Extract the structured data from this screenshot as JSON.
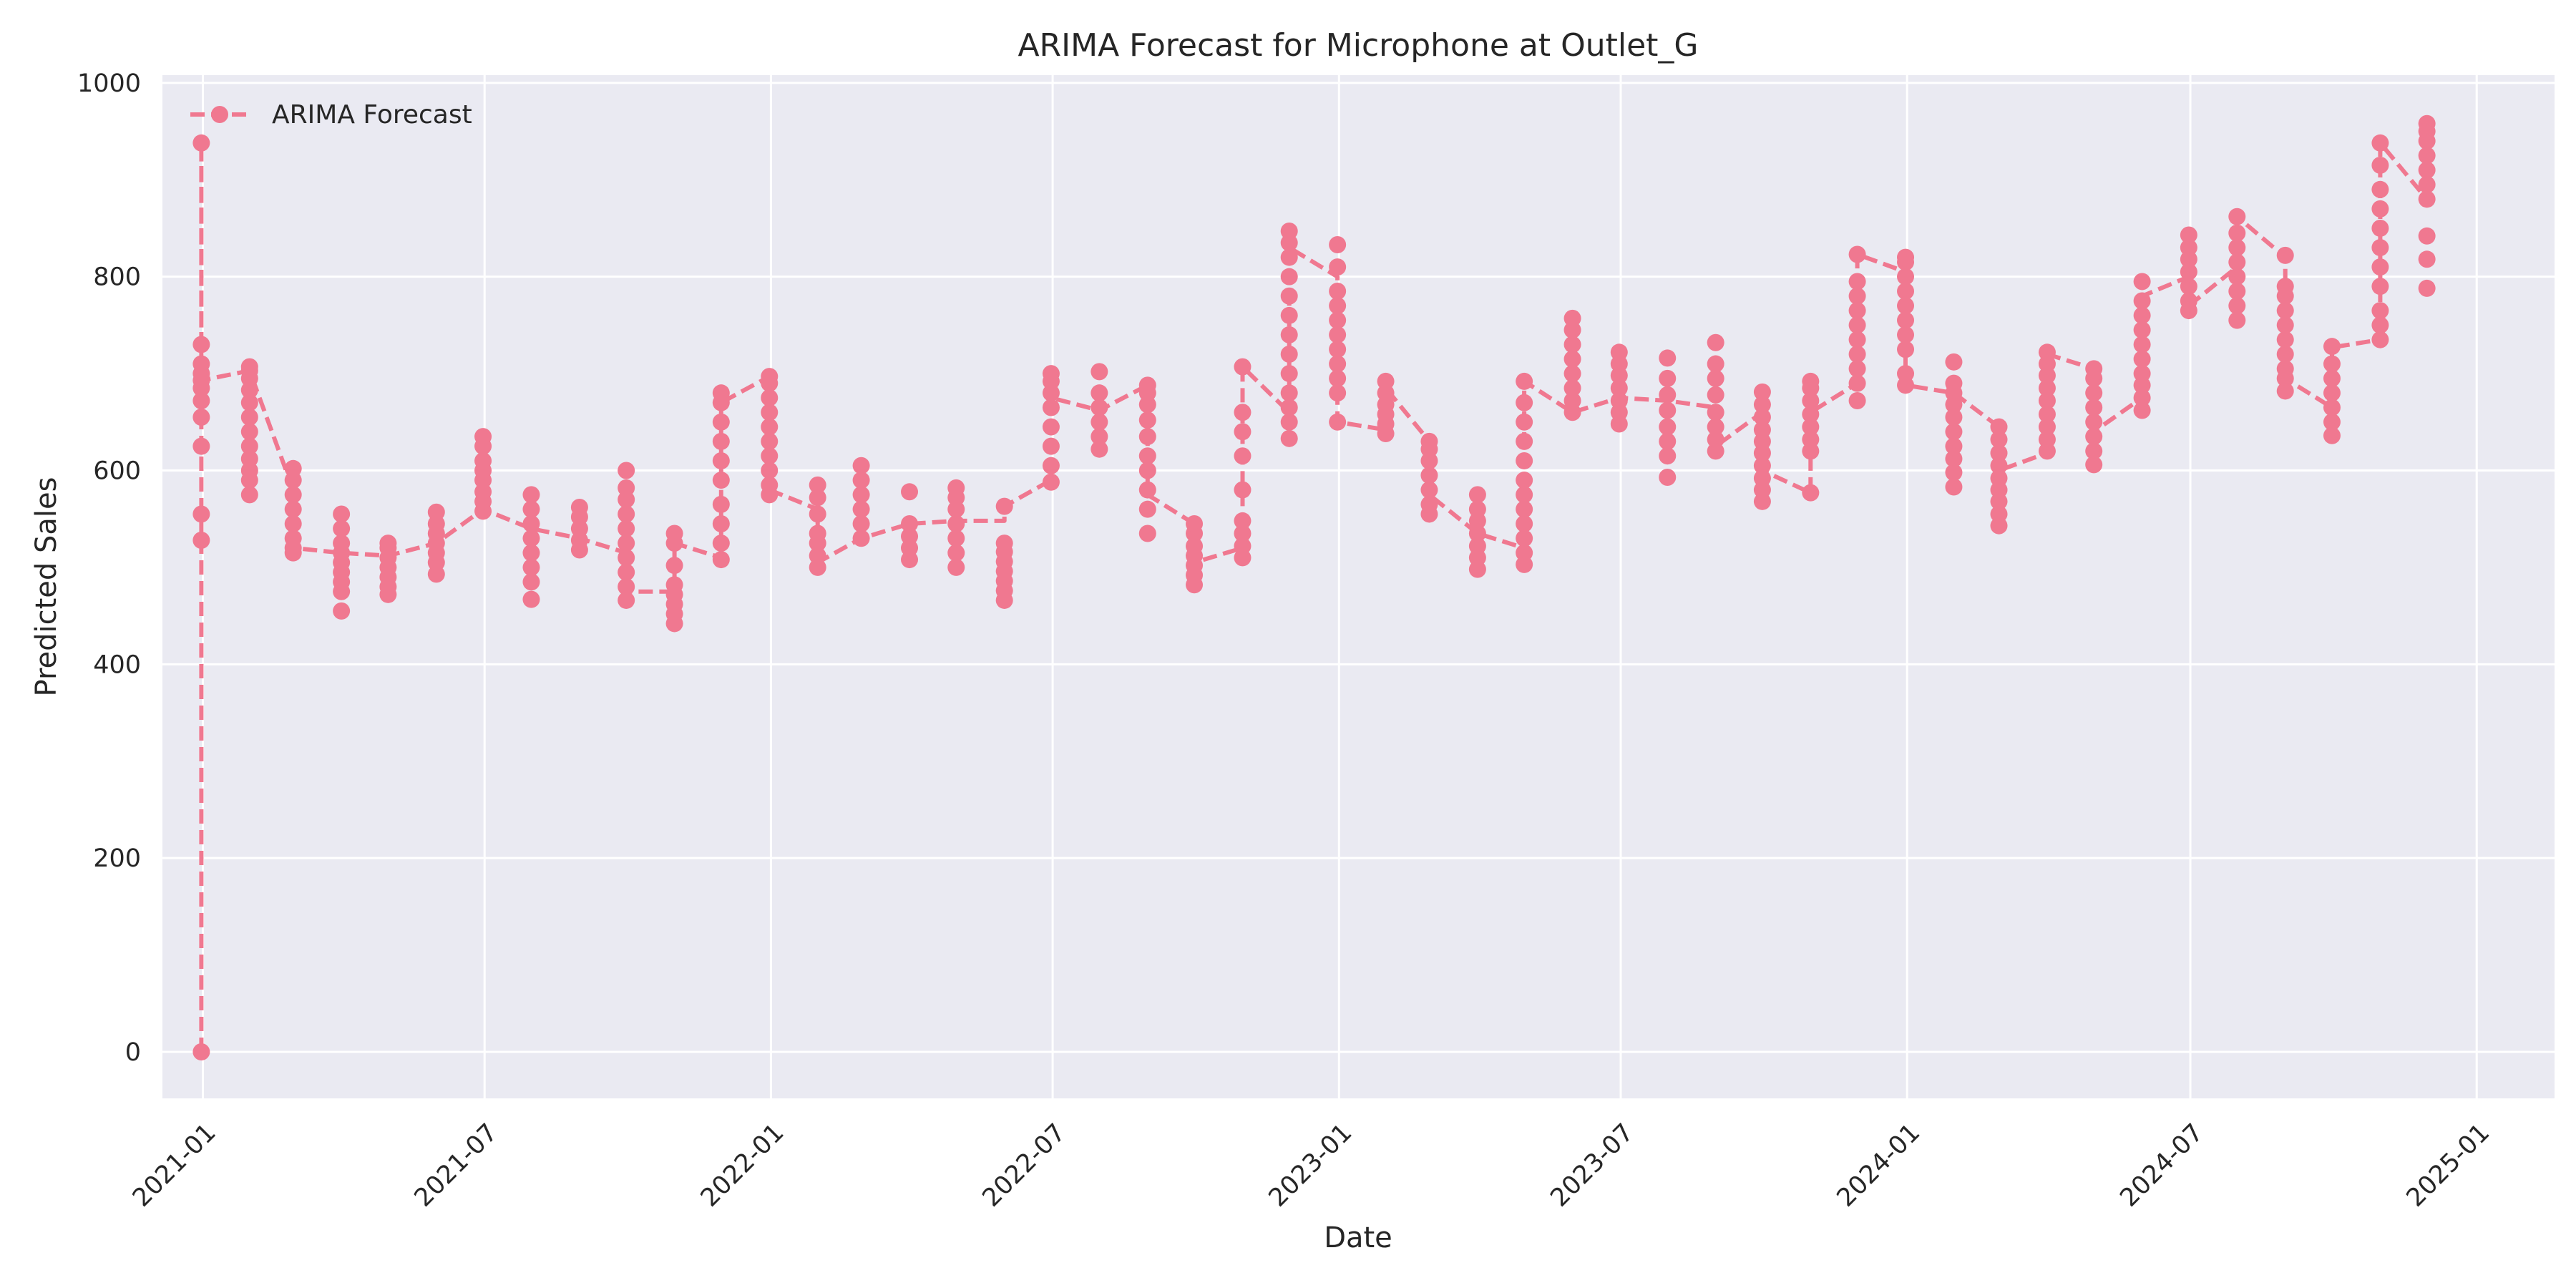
{
  "chart_data": {
    "type": "line",
    "title": "ARIMA Forecast for Microphone at Outlet_G",
    "xlabel": "Date",
    "ylabel": "Predicted Sales",
    "xlim": [
      "2020-12-06",
      "2025-02-20"
    ],
    "ylim": [
      -48,
      1008
    ],
    "x_ticks": [
      "2021-01",
      "2021-07",
      "2022-01",
      "2022-07",
      "2023-01",
      "2023-07",
      "2024-01",
      "2024-07",
      "2025-01"
    ],
    "y_ticks": [
      0,
      200,
      400,
      600,
      800,
      1000
    ],
    "grid": true,
    "legend_position": "top-left",
    "line_style": "dashed",
    "marker": "circle",
    "series": [
      {
        "name": "ARIMA Forecast",
        "color": "#F07890",
        "points": [
          {
            "date": "2020-12-31",
            "values": [
              0,
              528,
              555,
              625,
              655,
              672,
              685,
              693,
              700,
              710,
              730,
              938
            ]
          },
          {
            "date": "2021-01-31",
            "values": [
              575,
              590,
              600,
              612,
              625,
              640,
              655,
              670,
              683,
              695,
              703,
              707
            ]
          },
          {
            "date": "2021-02-28",
            "values": [
              515,
              520,
              530,
              545,
              560,
              575,
              590,
              602
            ]
          },
          {
            "date": "2021-03-31",
            "values": [
              455,
              475,
              485,
              495,
              505,
              515,
              525,
              540,
              555
            ]
          },
          {
            "date": "2021-04-30",
            "values": [
              472,
              480,
              490,
              500,
              510,
              520,
              525
            ]
          },
          {
            "date": "2021-05-31",
            "values": [
              493,
              505,
              515,
              525,
              535,
              545,
              557
            ]
          },
          {
            "date": "2021-06-30",
            "values": [
              558,
              568,
              578,
              590,
              600,
              610,
              625,
              635
            ]
          },
          {
            "date": "2021-07-31",
            "values": [
              467,
              485,
              500,
              515,
              530,
              545,
              560,
              575
            ]
          },
          {
            "date": "2021-08-31",
            "values": [
              518,
              528,
              540,
              552,
              562
            ]
          },
          {
            "date": "2021-09-30",
            "values": [
              466,
              480,
              495,
              510,
              525,
              540,
              555,
              570,
              582,
              600
            ]
          },
          {
            "date": "2021-10-31",
            "values": [
              442,
              452,
              462,
              472,
              482,
              502,
              525,
              535
            ]
          },
          {
            "date": "2021-11-30",
            "values": [
              508,
              525,
              545,
              565,
              590,
              610,
              630,
              650,
              670,
              680
            ]
          },
          {
            "date": "2021-12-31",
            "values": [
              575,
              585,
              600,
              615,
              630,
              645,
              660,
              675,
              690,
              697
            ]
          },
          {
            "date": "2022-01-31",
            "values": [
              500,
              512,
              525,
              535,
              555,
              572,
              585
            ]
          },
          {
            "date": "2022-02-28",
            "values": [
              530,
              545,
              560,
              575,
              590,
              605
            ]
          },
          {
            "date": "2022-03-31",
            "values": [
              508,
              520,
              532,
              545,
              578
            ]
          },
          {
            "date": "2022-04-30",
            "values": [
              500,
              515,
              530,
              545,
              560,
              572,
              582
            ]
          },
          {
            "date": "2022-05-31",
            "values": [
              466,
              476,
              486,
              496,
              506,
              516,
              525,
              563
            ]
          },
          {
            "date": "2022-06-30",
            "values": [
              588,
              605,
              625,
              645,
              665,
              680,
              692,
              700
            ]
          },
          {
            "date": "2022-07-31",
            "values": [
              622,
              635,
              650,
              665,
              680,
              702
            ]
          },
          {
            "date": "2022-08-31",
            "values": [
              535,
              560,
              580,
              600,
              615,
              635,
              652,
              668,
              680,
              688
            ]
          },
          {
            "date": "2022-09-30",
            "values": [
              482,
              492,
              502,
              512,
              522,
              535,
              545
            ]
          },
          {
            "date": "2022-10-31",
            "values": [
              510,
              522,
              535,
              548,
              580,
              615,
              640,
              660,
              707
            ]
          },
          {
            "date": "2022-11-30",
            "values": [
              633,
              650,
              665,
              680,
              700,
              720,
              740,
              760,
              780,
              800,
              820,
              835,
              847
            ]
          },
          {
            "date": "2022-12-31",
            "values": [
              650,
              680,
              695,
              710,
              725,
              740,
              755,
              770,
              785,
              810,
              833
            ]
          },
          {
            "date": "2023-01-31",
            "values": [
              638,
              648,
              658,
              668,
              680,
              692
            ]
          },
          {
            "date": "2023-02-28",
            "values": [
              555,
              565,
              580,
              595,
              610,
              622,
              630
            ]
          },
          {
            "date": "2023-03-31",
            "values": [
              498,
              510,
              522,
              535,
              548,
              560,
              575
            ]
          },
          {
            "date": "2023-04-30",
            "values": [
              503,
              515,
              530,
              545,
              560,
              575,
              590,
              610,
              630,
              650,
              670,
              692
            ]
          },
          {
            "date": "2023-05-31",
            "values": [
              660,
              672,
              685,
              700,
              715,
              730,
              745,
              757
            ]
          },
          {
            "date": "2023-06-30",
            "values": [
              648,
              660,
              672,
              685,
              698,
              710,
              722
            ]
          },
          {
            "date": "2023-07-31",
            "values": [
              593,
              615,
              630,
              645,
              662,
              678,
              695,
              716
            ]
          },
          {
            "date": "2023-08-31",
            "values": [
              620,
              632,
              645,
              660,
              678,
              695,
              710,
              732
            ]
          },
          {
            "date": "2023-09-30",
            "values": [
              568,
              580,
              592,
              605,
              618,
              630,
              642,
              655,
              668,
              681
            ]
          },
          {
            "date": "2023-10-31",
            "values": [
              577,
              620,
              632,
              645,
              658,
              672,
              685,
              692
            ]
          },
          {
            "date": "2023-11-30",
            "values": [
              672,
              690,
              705,
              720,
              735,
              750,
              765,
              780,
              795,
              823
            ]
          },
          {
            "date": "2023-12-31",
            "values": [
              688,
              700,
              725,
              740,
              755,
              770,
              785,
              800,
              815,
              820
            ]
          },
          {
            "date": "2024-01-31",
            "values": [
              583,
              598,
              612,
              625,
              640,
              655,
              668,
              680,
              690,
              712
            ]
          },
          {
            "date": "2024-02-29",
            "values": [
              543,
              555,
              568,
              580,
              592,
              605,
              618,
              632,
              645
            ]
          },
          {
            "date": "2024-03-31",
            "values": [
              620,
              632,
              645,
              658,
              672,
              685,
              698,
              710,
              722
            ]
          },
          {
            "date": "2024-04-30",
            "values": [
              606,
              620,
              635,
              650,
              665,
              680,
              695,
              705
            ]
          },
          {
            "date": "2024-05-31",
            "values": [
              662,
              675,
              688,
              700,
              715,
              730,
              745,
              760,
              775,
              795
            ]
          },
          {
            "date": "2024-06-30",
            "values": [
              765,
              775,
              790,
              805,
              818,
              830,
              843
            ]
          },
          {
            "date": "2024-07-31",
            "values": [
              755,
              770,
              785,
              800,
              815,
              830,
              845,
              862
            ]
          },
          {
            "date": "2024-08-31",
            "values": [
              682,
              695,
              705,
              720,
              735,
              750,
              765,
              780,
              790,
              822
            ]
          },
          {
            "date": "2024-09-30",
            "values": [
              636,
              650,
              665,
              680,
              695,
              710,
              728
            ]
          },
          {
            "date": "2024-10-31",
            "values": [
              735,
              750,
              765,
              790,
              810,
              830,
              850,
              870,
              890,
              915,
              938
            ]
          },
          {
            "date": "2024-11-30",
            "values": [
              788,
              818,
              842,
              880,
              895,
              910,
              925,
              940,
              950,
              958
            ]
          }
        ],
        "line_points": [
          [
            "2020-12-31",
            0
          ],
          [
            "2020-12-31",
            938
          ],
          [
            "2020-12-31",
            693
          ],
          [
            "2021-01-31",
            703
          ],
          [
            "2021-02-28",
            580
          ],
          [
            "2021-02-28",
            520
          ],
          [
            "2021-03-31",
            515
          ],
          [
            "2021-04-30",
            512
          ],
          [
            "2021-05-31",
            525
          ],
          [
            "2021-06-30",
            560
          ],
          [
            "2021-07-31",
            540
          ],
          [
            "2021-08-31",
            530
          ],
          [
            "2021-09-30",
            515
          ],
          [
            "2021-09-30",
            475
          ],
          [
            "2021-10-31",
            475
          ],
          [
            "2021-10-31",
            525
          ],
          [
            "2021-11-30",
            510
          ],
          [
            "2021-11-30",
            670
          ],
          [
            "2021-12-31",
            697
          ],
          [
            "2021-12-31",
            580
          ],
          [
            "2022-01-31",
            560
          ],
          [
            "2022-01-31",
            505
          ],
          [
            "2022-02-28",
            530
          ],
          [
            "2022-03-31",
            545
          ],
          [
            "2022-04-30",
            548
          ],
          [
            "2022-05-31",
            548
          ],
          [
            "2022-05-31",
            563
          ],
          [
            "2022-06-30",
            590
          ],
          [
            "2022-06-30",
            675
          ],
          [
            "2022-07-31",
            662
          ],
          [
            "2022-08-31",
            688
          ],
          [
            "2022-08-31",
            575
          ],
          [
            "2022-09-30",
            545
          ],
          [
            "2022-09-30",
            505
          ],
          [
            "2022-10-31",
            520
          ],
          [
            "2022-10-31",
            707
          ],
          [
            "2022-11-30",
            660
          ],
          [
            "2022-11-30",
            830
          ],
          [
            "2022-12-31",
            800
          ],
          [
            "2022-12-31",
            650
          ],
          [
            "2023-01-31",
            642
          ],
          [
            "2023-01-31",
            685
          ],
          [
            "2023-02-28",
            630
          ],
          [
            "2023-02-28",
            575
          ],
          [
            "2023-03-31",
            535
          ],
          [
            "2023-04-30",
            520
          ],
          [
            "2023-04-30",
            692
          ],
          [
            "2023-05-31",
            660
          ],
          [
            "2023-06-30",
            675
          ],
          [
            "2023-07-31",
            672
          ],
          [
            "2023-08-31",
            665
          ],
          [
            "2023-08-31",
            625
          ],
          [
            "2023-09-30",
            660
          ],
          [
            "2023-09-30",
            600
          ],
          [
            "2023-10-31",
            577
          ],
          [
            "2023-10-31",
            660
          ],
          [
            "2023-11-30",
            690
          ],
          [
            "2023-11-30",
            823
          ],
          [
            "2023-12-31",
            805
          ],
          [
            "2023-12-31",
            688
          ],
          [
            "2024-01-31",
            680
          ],
          [
            "2024-02-29",
            645
          ],
          [
            "2024-02-29",
            600
          ],
          [
            "2024-03-31",
            618
          ],
          [
            "2024-03-31",
            720
          ],
          [
            "2024-04-30",
            705
          ],
          [
            "2024-04-30",
            640
          ],
          [
            "2024-05-31",
            675
          ],
          [
            "2024-05-31",
            780
          ],
          [
            "2024-06-30",
            800
          ],
          [
            "2024-06-30",
            770
          ],
          [
            "2024-07-31",
            810
          ],
          [
            "2024-07-31",
            862
          ],
          [
            "2024-08-31",
            820
          ],
          [
            "2024-08-31",
            695
          ],
          [
            "2024-09-30",
            665
          ],
          [
            "2024-09-30",
            727
          ],
          [
            "2024-10-31",
            735
          ],
          [
            "2024-10-31",
            938
          ],
          [
            "2024-11-30",
            880
          ],
          [
            "2024-11-30",
            958
          ]
        ]
      }
    ]
  }
}
